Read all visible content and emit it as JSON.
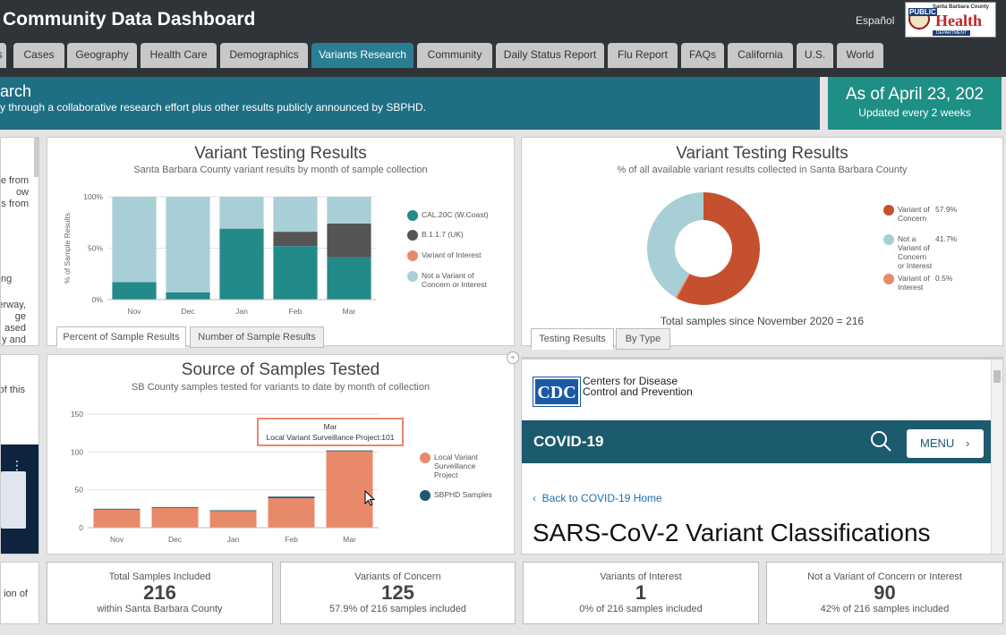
{
  "header": {
    "title": "Community Data Dashboard",
    "lang": "Español",
    "logo": {
      "line1": "Santa Barbara County",
      "public": "PUBLIC",
      "health": "Health",
      "dept": "DEPARTMENT"
    }
  },
  "tabs": [
    "s",
    "Cases",
    "Geography",
    "Health Care",
    "Demographics",
    "Variants Research",
    "Community",
    "Daily Status Report",
    "Flu Report",
    "FAQs",
    "California",
    "U.S.",
    "World"
  ],
  "banner": {
    "title": "arch",
    "subtitle": "y through a collaborative research effort plus other results publicly announced by SBPHD."
  },
  "date_box": {
    "main": "As of April 23, 202",
    "sub": "Updated every 2 weeks"
  },
  "left_fragments": {
    "a": [
      "e from",
      "ow",
      "ts from"
    ],
    "b": "ng",
    "c": [
      "erway,",
      "ge",
      "ased",
      "y and"
    ],
    "d": "of this",
    "e": [
      "ion of"
    ]
  },
  "panel1": {
    "title": "Variant Testing Results",
    "subtitle": "Santa Barbara County variant results by month of sample collection",
    "tabs": [
      "Percent of Sample Results",
      "Number of Sample Results"
    ],
    "legend": [
      "CAL.20C (W.Coast)",
      "B.1.1.7 (UK)",
      "Variant of Interest",
      "Not a Variant of Concern or Interest"
    ]
  },
  "panel2": {
    "title": "Variant Testing Results",
    "subtitle": "% of all available variant results collected in Santa Barbara County",
    "total": "Total samples since November 2020 = 216",
    "tabs": [
      "Testing Results",
      "By Type"
    ],
    "legend": [
      {
        "label": "Variant of Concern",
        "pct": "57.9%"
      },
      {
        "label": "Not a Variant of Concern or Interest",
        "pct": "41.7%"
      },
      {
        "label": "Variant of Interest",
        "pct": "0.5%"
      }
    ]
  },
  "panel3": {
    "title": "Source of Samples Tested",
    "subtitle": "SB County samples tested for variants to date by month of collection",
    "tooltip": {
      "month": "Mar",
      "text": "Local Variant Surveillance Project:101"
    },
    "legend": [
      "Local Variant Surveillance Project",
      "SBPHD Samples"
    ]
  },
  "cdc": {
    "name": "Centers for Disease Control and Prevention",
    "logo": "CDC",
    "section": "COVID-19",
    "menu": "MENU",
    "back": "Back to COVID-19 Home",
    "heading": "SARS-CoV-2 Variant Classifications"
  },
  "stats": [
    {
      "label": "Total Samples Included",
      "value": "216",
      "sub": "within Santa Barbara County"
    },
    {
      "label": "Variants of Concern",
      "value": "125",
      "sub": "57.9% of 216 samples included"
    },
    {
      "label": "Variants of Interest",
      "value": "1",
      "sub": "0% of 216 samples included"
    },
    {
      "label": "Not a Variant of Concern or Interest",
      "value": "90",
      "sub": "42% of 216 samples included"
    }
  ],
  "colors": {
    "teal": "#238a8a",
    "dark": "#555555",
    "orange": "#e8896a",
    "lightblue": "#a8cfd6",
    "red": "#c4502e",
    "navy": "#1a5a6e"
  },
  "chart_data": [
    {
      "type": "bar",
      "stacked": true,
      "title": "Variant Testing Results",
      "ylabel": "% of Sample Results",
      "categories": [
        "Nov",
        "Dec",
        "Jan",
        "Feb",
        "Mar"
      ],
      "yticks": [
        "0%",
        "50%",
        "100%"
      ],
      "ylim": [
        0,
        100
      ],
      "series": [
        {
          "name": "CAL.20C (W.Coast)",
          "color": "#238a8a",
          "values": [
            17,
            7,
            69,
            52,
            41
          ]
        },
        {
          "name": "B.1.1.7 (UK)",
          "color": "#555555",
          "values": [
            0,
            0,
            0,
            14,
            33
          ]
        },
        {
          "name": "Variant of Interest",
          "color": "#e8896a",
          "values": [
            0,
            0,
            0,
            0,
            0
          ]
        },
        {
          "name": "Not a Variant of Concern or Interest",
          "color": "#a8cfd6",
          "values": [
            83,
            93,
            31,
            34,
            26
          ]
        }
      ]
    },
    {
      "type": "pie",
      "donut": true,
      "title": "Variant Testing Results",
      "slices": [
        {
          "label": "Variant of Concern",
          "value": 57.9,
          "color": "#c4502e"
        },
        {
          "label": "Variant of Interest",
          "value": 0.5,
          "color": "#e8896a"
        },
        {
          "label": "Not a Variant of Concern or Interest",
          "value": 41.7,
          "color": "#a8cfd6"
        }
      ]
    },
    {
      "type": "bar",
      "stacked": true,
      "title": "Source of Samples Tested",
      "categories": [
        "Nov",
        "Dec",
        "Jan",
        "Feb",
        "Mar"
      ],
      "yticks": [
        "0",
        "50",
        "100",
        "150"
      ],
      "ylim": [
        0,
        150
      ],
      "series": [
        {
          "name": "Local Variant Surveillance Project",
          "color": "#e8896a",
          "values": [
            24,
            26,
            22,
            39,
            101
          ]
        },
        {
          "name": "SBPHD Samples",
          "color": "#1a5a6e",
          "values": [
            1,
            1,
            1,
            2,
            1
          ]
        }
      ]
    }
  ]
}
